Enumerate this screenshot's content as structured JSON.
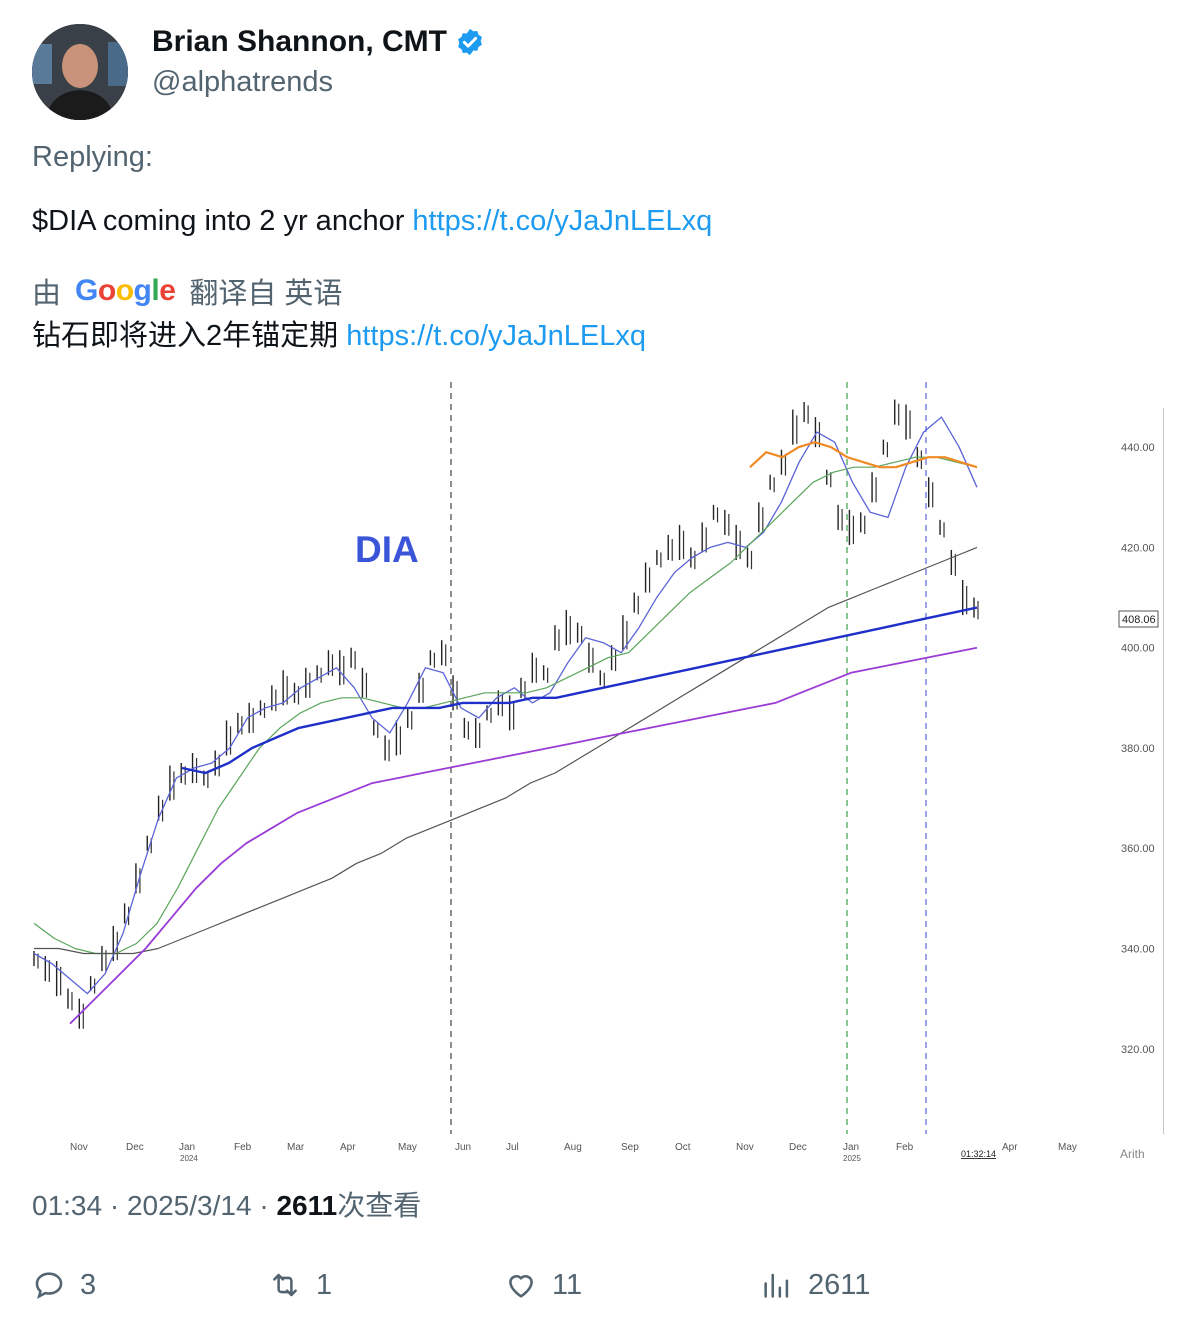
{
  "author": {
    "name": "Brian Shannon, CMT",
    "handle": "@alphatrends",
    "verified": true,
    "verified_color": "#1d9bf0"
  },
  "replying_label": "Replying:",
  "tweet": {
    "text": "$DIA coming into 2 yr anchor",
    "link": "https://t.co/yJaJnLELxq"
  },
  "translation": {
    "prefix": "由",
    "brand": "Google",
    "suffix": "翻译自 英语",
    "text": "钻石即将进入2年锚定期",
    "link": "https://t.co/yJaJnLELxq"
  },
  "chart_data": {
    "type": "line",
    "title": "DIA",
    "title_color": "#3b55d9",
    "x_month_labels": [
      "Nov",
      "Dec",
      "Jan",
      "Feb",
      "Mar",
      "Apr",
      "May",
      "Jun",
      "Jul",
      "Aug",
      "Sep",
      "Oct",
      "Nov",
      "Dec",
      "Jan",
      "Feb",
      "Apr",
      "May"
    ],
    "year_labels": [
      "2024",
      "2025"
    ],
    "y_tick_labels": [
      "440.00",
      "420.00",
      "400.00",
      "380.00",
      "360.00",
      "340.00",
      "320.00"
    ],
    "y_ticks": [
      440,
      420,
      400,
      380,
      360,
      340,
      320
    ],
    "ylim": [
      303,
      453
    ],
    "last_price_label": "408.06",
    "time_label": "01:32:14",
    "scale_label": "Arith",
    "price_series": [
      338,
      336,
      334,
      330,
      327,
      333,
      338,
      341,
      347,
      354,
      361,
      368,
      373,
      375,
      376,
      374,
      377,
      382,
      385,
      386,
      388,
      390,
      392,
      391,
      393,
      395,
      397,
      396,
      398,
      393,
      384,
      380,
      382,
      386,
      392,
      398,
      399,
      391,
      384,
      383,
      387,
      389,
      387,
      392,
      396,
      395,
      402,
      404,
      403,
      398,
      394,
      398,
      403,
      409,
      414,
      418,
      420,
      421,
      418,
      422,
      427,
      425,
      421,
      418,
      426,
      433,
      437,
      444,
      447,
      443,
      434,
      426,
      424,
      425,
      432,
      440,
      447,
      445,
      438,
      431,
      424,
      417,
      410,
      408
    ],
    "series": [
      {
        "name": "",
        "color": "#5b64d8",
        "values": [
          339,
          337,
          334,
          331,
          335,
          343,
          355,
          366,
          374,
          376,
          377,
          380,
          386,
          388,
          389,
          392,
          394,
          396,
          392,
          386,
          383,
          389,
          396,
          395,
          388,
          386,
          390,
          392,
          389,
          391,
          397,
          402,
          401,
          399,
          404,
          410,
          415,
          418,
          420,
          421,
          420,
          423,
          429,
          437,
          443,
          441,
          433,
          427,
          426,
          436,
          443,
          446,
          440,
          432
        ]
      },
      {
        "name": "",
        "color": "#5aa55a",
        "values": [
          345,
          342,
          340,
          339,
          339,
          341,
          345,
          352,
          360,
          368,
          374,
          380,
          384,
          387,
          389,
          390,
          390,
          389,
          388,
          388,
          389,
          390,
          391,
          391,
          391,
          392,
          394,
          396,
          398,
          399,
          403,
          407,
          411,
          414,
          417,
          421,
          425,
          429,
          433,
          435,
          436,
          436,
          437,
          438,
          438,
          437,
          436
        ]
      },
      {
        "name": "",
        "color": "#555555",
        "values": [
          340,
          340,
          339,
          339,
          339,
          340,
          342,
          344,
          346,
          348,
          350,
          352,
          354,
          357,
          359,
          362,
          364,
          366,
          368,
          370,
          373,
          375,
          378,
          381,
          384,
          387,
          390,
          393,
          396,
          399,
          402,
          405,
          408,
          410,
          412,
          414,
          416,
          418,
          420
        ]
      },
      {
        "name": "",
        "color": "#1f2fc9",
        "values": [
          376,
          375,
          377,
          380,
          382,
          384,
          385,
          386,
          387,
          388,
          388,
          388,
          389,
          389,
          389,
          390,
          390,
          391,
          392,
          393,
          394,
          395,
          396,
          397,
          398,
          399,
          400,
          401,
          402,
          403,
          404,
          405,
          406,
          407,
          408
        ]
      },
      {
        "name": "",
        "color": "#9b3bd6",
        "values": [
          325,
          330,
          335,
          340,
          346,
          352,
          357,
          361,
          364,
          367,
          369,
          371,
          373,
          374,
          375,
          376,
          377,
          378,
          379,
          380,
          381,
          382,
          383,
          384,
          385,
          386,
          387,
          388,
          389,
          391,
          393,
          395,
          396,
          397,
          398,
          399,
          400
        ]
      },
      {
        "name": "",
        "color": "#f08a24",
        "values": [
          436,
          439,
          438,
          440,
          441,
          440,
          438,
          437,
          436,
          436,
          437,
          438,
          438,
          437,
          436
        ]
      }
    ]
  },
  "meta": {
    "time": "01:34",
    "separator": "·",
    "date": "2025/3/14",
    "views_count": "2611",
    "views_label": "次查看"
  },
  "actions": {
    "replies": "3",
    "retweets": "1",
    "likes": "11",
    "views": "2611"
  }
}
